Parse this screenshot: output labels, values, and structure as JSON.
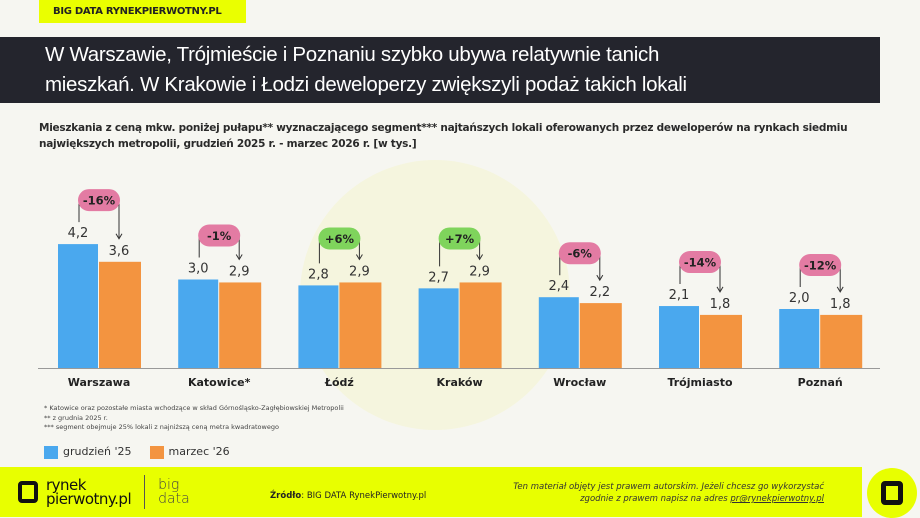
{
  "tag": "BIG DATA RYNEKPIERWOTNY.PL",
  "title_lines": [
    "W Warszawie, Trójmieście i Poznaniu szybko ubywa relatywnie tanich",
    "mieszkań. W Krakowie i Łodzi deweloperzy zwiększyli podaż takich lokali"
  ],
  "chart_data": {
    "type": "bar",
    "title": "Mieszkania z ceną mkw. poniżej pułapu** wyznaczającego segment*** najtańszych lokali oferowanych przez deweloperów na rynkach siedmiu największych metropolii, grudzień 2025 r. - marzec 2026 r. [w tys.]",
    "categories": [
      "Warszawa",
      "Katowice*",
      "Łódź",
      "Kraków",
      "Wrocław",
      "Trójmiasto",
      "Poznań"
    ],
    "series": [
      {
        "name": "grudzień '25",
        "color": "#4aa8ee",
        "values": [
          4.2,
          3.0,
          2.8,
          2.7,
          2.4,
          2.1,
          2.0
        ],
        "labels": [
          "4,2",
          "3,0",
          "2,8",
          "2,7",
          "2,4",
          "2,1",
          "2,0"
        ]
      },
      {
        "name": "marzec '26",
        "color": "#f39440",
        "values": [
          3.6,
          2.9,
          2.9,
          2.9,
          2.2,
          1.8,
          1.8
        ],
        "labels": [
          "3,6",
          "2,9",
          "2,9",
          "2,9",
          "2,2",
          "1,8",
          "1,8"
        ]
      }
    ],
    "changes": [
      "-16%",
      "-1%",
      "+6%",
      "+7%",
      "-6%",
      "-14%",
      "-12%"
    ],
    "change_colors": {
      "negative": "#e37ba3",
      "positive": "#7fd45c"
    },
    "legend": "bottom-left",
    "grid": false
  },
  "notes": [
    "* Katowice oraz pozostałe miasta wchodzące w skład Górnośląsko-Zagłębiowskiej Metropolii",
    "** z grudnia 2025 r.",
    "*** segment obejmuje 25% lokali z najniższą ceną metra kwadratowego"
  ],
  "footer": {
    "logo_line1": "rynek",
    "logo_line2": "pierwotny.pl",
    "bd1": "big",
    "bd2": "data",
    "source_label": "Źródło",
    "source_value": ": BIG DATA RynekPierwotny.pl",
    "copy_line1": "Ten materiał objęty jest prawem autorskim. Jeżeli chcesz go wykorzystać",
    "copy_line2": "zgodnie z prawem napisz na adres ",
    "email": "pr@rynekpierwotny.pl"
  }
}
